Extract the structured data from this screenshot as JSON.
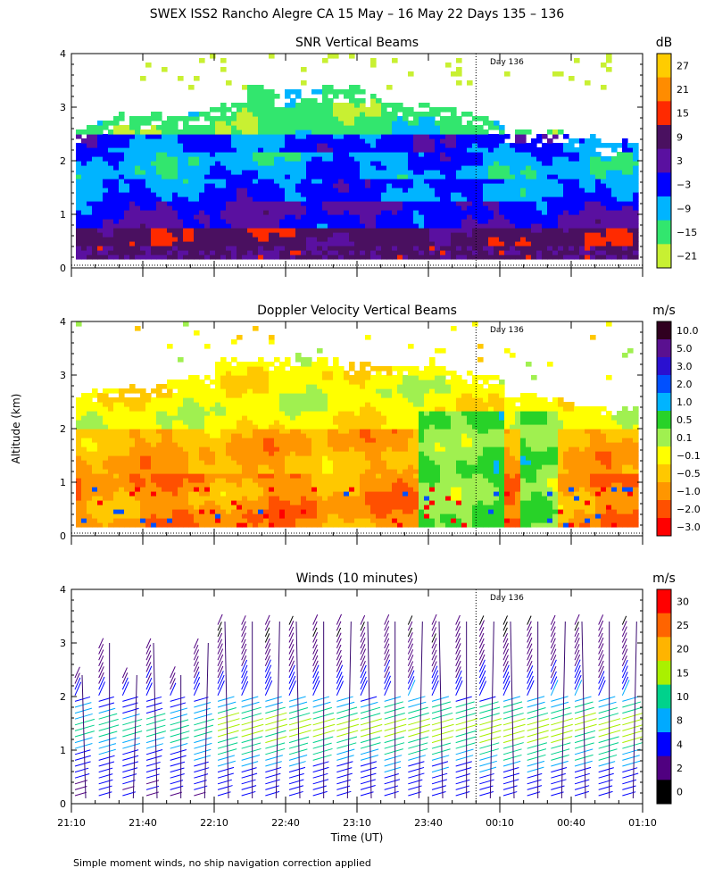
{
  "figure": {
    "title": "SWEX ISS2 Rancho Alegre CA  15 May – 16 May 22 Days 135 – 136",
    "ylabel": "Altitude (km)",
    "xlabel": "Time (UT)",
    "footnote": "Simple moment winds, no ship navigation correction applied",
    "day_marker_label": "Day 136",
    "day_marker_time": "00:00",
    "x_ticks": [
      "21:10",
      "21:40",
      "22:10",
      "22:40",
      "23:10",
      "23:40",
      "00:10",
      "00:40",
      "01:10"
    ],
    "y_ticks": [
      "0",
      "1",
      "2",
      "3",
      "4"
    ]
  },
  "chart_data": [
    {
      "type": "heatmap",
      "title": "SNR Vertical Beams",
      "x_range": [
        "21:10",
        "01:10"
      ],
      "ylim": [
        0,
        4
      ],
      "ylabel": "Altitude (km)",
      "colorbar_units": "dB",
      "colorbar_labels": [
        "27",
        "21",
        "15",
        "9",
        "3",
        "−3",
        "−9",
        "−15",
        "−21"
      ],
      "colorbar_colors": [
        "#ffcc00",
        "#ff8c00",
        "#ff2a00",
        "#4a1060",
        "#5a10a0",
        "#0000ff",
        "#00b4ff",
        "#32e66e",
        "#c8f032"
      ],
      "description_rows": [
        {
          "alt_km": 0.2,
          "snr_db": 9
        },
        {
          "alt_km": 0.5,
          "snr_db": 6
        },
        {
          "alt_km": 0.9,
          "snr_db": 0
        },
        {
          "alt_km": 1.3,
          "snr_db": -6
        },
        {
          "alt_km": 1.8,
          "snr_db": -9
        },
        {
          "alt_km": 2.3,
          "snr_db": -6
        },
        {
          "alt_km": 2.8,
          "snr_db": -15
        },
        {
          "alt_km": 3.4,
          "snr_db": -21
        }
      ]
    },
    {
      "type": "heatmap",
      "title": "Doppler Velocity Vertical Beams",
      "x_range": [
        "21:10",
        "01:10"
      ],
      "ylim": [
        0,
        4
      ],
      "colorbar_units": "m/s",
      "colorbar_labels": [
        "10.0",
        "5.0",
        "3.0",
        "2.0",
        "1.0",
        "0.5",
        "0.1",
        "−0.1",
        "−0.5",
        "−1.0",
        "−2.0",
        "−3.0"
      ],
      "colorbar_colors": [
        "#300020",
        "#5a1090",
        "#2a10d0",
        "#0050ff",
        "#00b4ff",
        "#28d228",
        "#a0f050",
        "#ffff00",
        "#ffc800",
        "#ff9600",
        "#ff5000",
        "#ff0000"
      ],
      "typical_values_ms": {
        "0-1 km": -1.0,
        "1-2 km": -0.5,
        "2-3 km": 0.1
      }
    },
    {
      "type": "wind_barbs",
      "title": "Winds (10 minutes)",
      "x_range": [
        "21:10",
        "01:10"
      ],
      "ylim": [
        0,
        4
      ],
      "colorbar_units": "m/s",
      "colorbar_labels": [
        "30",
        "25",
        "20",
        "15",
        "10",
        "8",
        "4",
        "2",
        "0"
      ],
      "colorbar_colors": [
        "#ff0000",
        "#ff6400",
        "#ffb400",
        "#aaf000",
        "#00d28c",
        "#00aaff",
        "#0000ff",
        "#500080",
        "#000000"
      ],
      "profile_times": [
        "21:10",
        "21:20",
        "21:30",
        "21:40",
        "21:50",
        "22:00",
        "22:10",
        "22:20",
        "22:30",
        "22:40",
        "22:50",
        "23:00",
        "23:10",
        "23:20",
        "23:30",
        "23:40",
        "23:50",
        "00:00",
        "00:10",
        "00:20",
        "00:30",
        "00:40",
        "00:50",
        "01:00",
        "01:10"
      ],
      "speed_profile_ms": [
        {
          "alt_km": 0.2,
          "speed": 6
        },
        {
          "alt_km": 0.6,
          "speed": 8
        },
        {
          "alt_km": 1.0,
          "speed": 11
        },
        {
          "alt_km": 1.4,
          "speed": 14
        },
        {
          "alt_km": 1.8,
          "speed": 10
        },
        {
          "alt_km": 2.2,
          "speed": 6
        },
        {
          "alt_km": 2.6,
          "speed": 4
        },
        {
          "alt_km": 3.0,
          "speed": 3
        },
        {
          "alt_km": 3.4,
          "speed": 3
        }
      ]
    }
  ]
}
